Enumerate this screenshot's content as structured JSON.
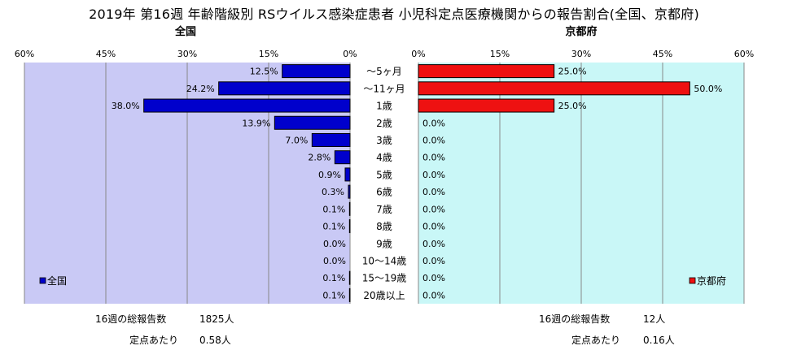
{
  "title": "2019年 第16週 年齢階級別 RSウイルス感染症患者 小児科定点医療機関からの報告割合(全国、京都府)",
  "chart_data": {
    "type": "bar",
    "orientation": "horizontal",
    "layout": "back-to-back",
    "categories": [
      "～5ヶ月",
      "～11ヶ月",
      "1歳",
      "2歳",
      "3歳",
      "4歳",
      "5歳",
      "6歳",
      "7歳",
      "8歳",
      "9歳",
      "10～14歳",
      "15～19歳",
      "20歳以上"
    ],
    "xlim": [
      0,
      60
    ],
    "ticks": [
      "0%",
      "15%",
      "30%",
      "45%",
      "60%"
    ],
    "legend_placement": "bottom",
    "series": [
      {
        "name": "全国",
        "panel_title": "全国",
        "legend": "全国",
        "color": "#0000cc",
        "panel_bg": "#c9c9f5",
        "values": [
          12.5,
          24.2,
          38.0,
          13.9,
          7.0,
          2.8,
          0.9,
          0.3,
          0.1,
          0.1,
          0.0,
          0.0,
          0.1,
          0.1
        ],
        "labels": [
          "12.5%",
          "24.2%",
          "38.0%",
          "13.9%",
          "7.0%",
          "2.8%",
          "0.9%",
          "0.3%",
          "0.1%",
          "0.1%",
          "0.0%",
          "0.0%",
          "0.1%",
          "0.1%"
        ]
      },
      {
        "name": "京都府",
        "panel_title": "京都府",
        "legend": "京都府",
        "color": "#ee1111",
        "panel_bg": "#c9f7f7",
        "values": [
          25.0,
          50.0,
          25.0,
          0,
          0,
          0,
          0,
          0,
          0,
          0,
          0,
          0,
          0,
          0
        ],
        "labels": [
          "25.0%",
          "50.0%",
          "25.0%",
          "0.0%",
          "0.0%",
          "0.0%",
          "0.0%",
          "0.0%",
          "0.0%",
          "0.0%",
          "0.0%",
          "0.0%",
          "0.0%",
          "0.0%"
        ]
      }
    ]
  },
  "summary": {
    "national": {
      "total_label": "16週の総報告数",
      "total_value": "1825人",
      "per_label": "定点あたり",
      "per_value": "0.58人"
    },
    "kyoto": {
      "total_label": "16週の総報告数",
      "total_value": "12人",
      "per_label": "定点あたり",
      "per_value": "0.16人"
    }
  }
}
